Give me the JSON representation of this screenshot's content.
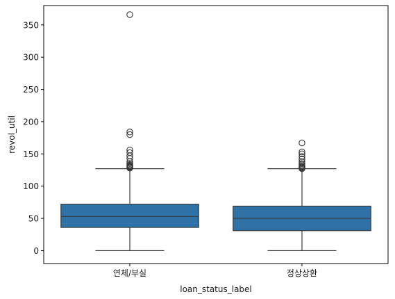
{
  "chart_data": {
    "type": "box",
    "title": "",
    "xlabel": "loan_status_label",
    "ylabel": "revol_util",
    "ylim": [
      -20,
      380
    ],
    "yticks": [
      0,
      50,
      100,
      150,
      200,
      250,
      300,
      350
    ],
    "grid": false,
    "box_color": "#2e72a8",
    "line_color": "#3a3a3a",
    "categories": [
      "연체/부실",
      "정상상환"
    ],
    "boxes": [
      {
        "category": "연체/부실",
        "whisker_low": 0,
        "q1": 36,
        "median": 53,
        "q3": 72,
        "whisker_high": 127,
        "outliers": [
          128,
          129,
          130,
          131,
          132,
          133,
          135,
          138,
          143,
          147,
          152,
          156,
          180,
          184,
          366
        ]
      },
      {
        "category": "정상상환",
        "whisker_low": 0,
        "q1": 31,
        "median": 50,
        "q3": 69,
        "whisker_high": 127,
        "outliers": [
          127,
          128,
          129,
          130,
          131,
          133,
          135,
          138,
          142,
          146,
          150,
          153,
          167
        ]
      }
    ]
  }
}
